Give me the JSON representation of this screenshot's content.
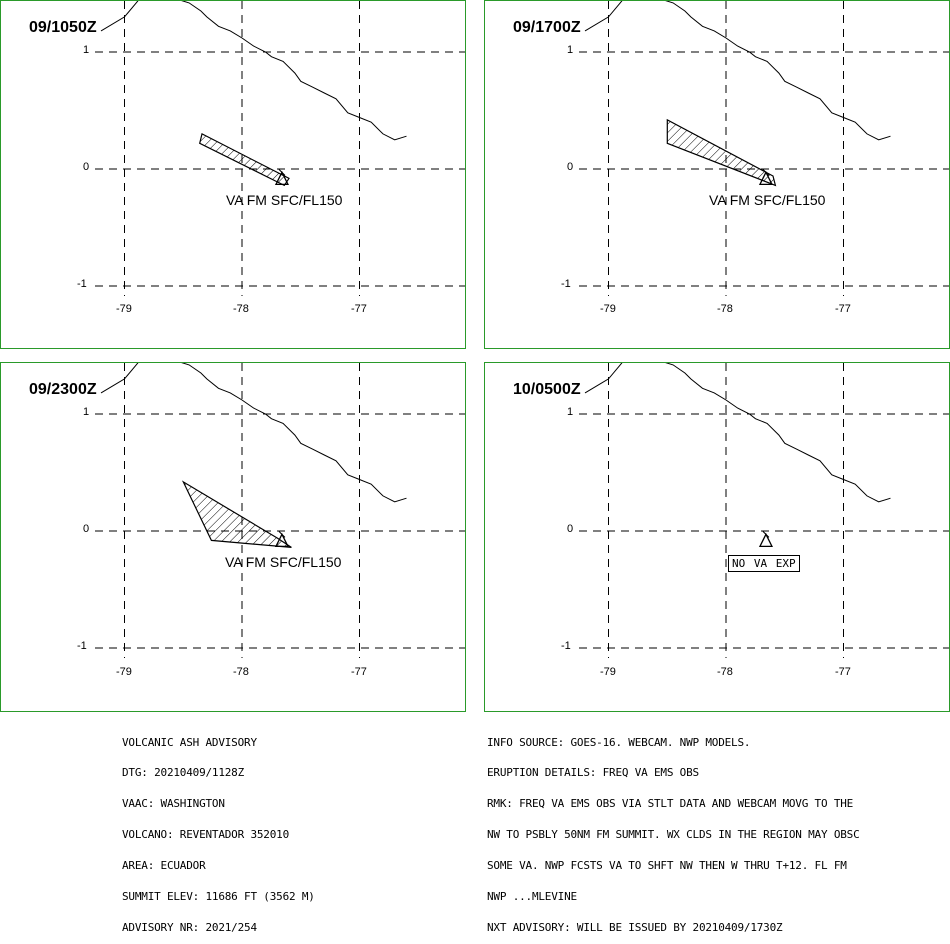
{
  "map": {
    "axes": {
      "y_labels": [
        "1",
        "0",
        "-1"
      ],
      "x_labels": [
        "-79",
        "-78",
        "-77"
      ]
    },
    "coastline_lonlat": [
      [
        -79.2,
        1.18
      ],
      [
        -79.0,
        1.3
      ],
      [
        -78.9,
        1.42
      ],
      [
        -78.85,
        1.48
      ],
      [
        -78.8,
        1.52
      ],
      [
        -78.75,
        1.6
      ],
      [
        -78.7,
        1.56
      ],
      [
        -78.65,
        1.52
      ],
      [
        -78.55,
        1.45
      ],
      [
        -78.45,
        1.42
      ],
      [
        -78.35,
        1.35
      ],
      [
        -78.3,
        1.3
      ],
      [
        -78.2,
        1.22
      ],
      [
        -78.1,
        1.18
      ],
      [
        -78.0,
        1.12
      ],
      [
        -77.9,
        1.05
      ],
      [
        -77.8,
        1.0
      ],
      [
        -77.75,
        0.96
      ],
      [
        -77.65,
        0.92
      ],
      [
        -77.55,
        0.82
      ],
      [
        -77.5,
        0.75
      ],
      [
        -77.4,
        0.7
      ],
      [
        -77.3,
        0.65
      ],
      [
        -77.2,
        0.6
      ],
      [
        -77.1,
        0.48
      ],
      [
        -77.0,
        0.44
      ],
      [
        -76.9,
        0.4
      ],
      [
        -76.8,
        0.3
      ],
      [
        -76.7,
        0.25
      ],
      [
        -76.6,
        0.28
      ]
    ],
    "volcano": {
      "name": "REVENTADOR",
      "lon": -77.66,
      "lat": -0.08
    }
  },
  "panels": [
    {
      "title": "09/1050Z",
      "va_label": "VA FM SFC/FL150",
      "ash_polygon": [
        [
          -78.34,
          0.3
        ],
        [
          -78.36,
          0.22
        ],
        [
          -77.64,
          -0.14
        ],
        [
          -77.6,
          -0.08
        ]
      ]
    },
    {
      "title": "09/1700Z",
      "va_label": "VA FM SFC/FL150",
      "ash_polygon": [
        [
          -78.5,
          0.42
        ],
        [
          -78.5,
          0.22
        ],
        [
          -77.58,
          -0.14
        ],
        [
          -77.6,
          -0.06
        ]
      ]
    },
    {
      "title": "09/2300Z",
      "va_label": "VA FM SFC/FL150",
      "ash_polygon": [
        [
          -78.5,
          0.42
        ],
        [
          -78.26,
          -0.08
        ],
        [
          -77.58,
          -0.14
        ],
        [
          -77.7,
          -0.06
        ]
      ]
    },
    {
      "title": "10/0500Z",
      "no_va_label": "NO VA EXP",
      "ash_polygon": []
    }
  ],
  "advisory_left": [
    "VOLCANIC ASH ADVISORY",
    "DTG: 20210409/1128Z",
    "VAAC: WASHINGTON",
    "VOLCANO: REVENTADOR 352010",
    "AREA: ECUADOR",
    "SUMMIT ELEV: 11686 FT (3562 M)",
    "ADVISORY NR: 2021/254"
  ],
  "advisory_right": [
    "INFO SOURCE: GOES-16. WEBCAM. NWP MODELS.",
    "ERUPTION DETAILS: FREQ VA EMS OBS",
    "RMK: FREQ VA EMS OBS VIA STLT DATA AND WEBCAM MOVG TO THE",
    "NW TO PSBLY 50NM FM SUMMIT. WX CLDS IN THE REGION MAY OBSC",
    "SOME VA. NWP FCSTS VA TO SHFT NW THEN W THRU T+12. FL FM",
    "NWP ...MLEVINE",
    "NXT ADVISORY: WILL BE ISSUED BY 20210409/1730Z"
  ],
  "colors": {
    "frame": "#2a9a2a",
    "ink": "#000000"
  }
}
